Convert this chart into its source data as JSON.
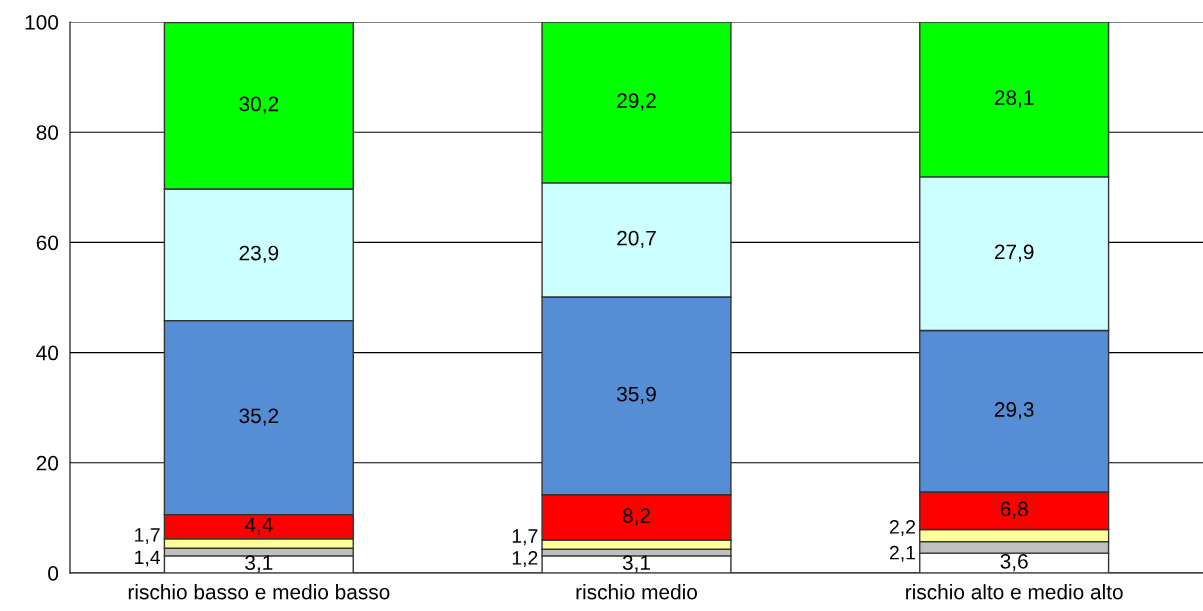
{
  "chart_data": {
    "type": "bar",
    "stacked": true,
    "categories": [
      "rischio basso e medio basso",
      "rischio medio",
      "rischio alto e medio alto"
    ],
    "ylim": [
      0,
      100
    ],
    "yticks": [
      0,
      20,
      40,
      60,
      80,
      100
    ],
    "grid": "y",
    "series": [
      {
        "color": "#ffffff",
        "values": [
          3.1,
          3.1,
          3.6
        ],
        "value_labels": [
          "3,1",
          "3,1",
          "3,6"
        ]
      },
      {
        "color": "#c0c0c0",
        "values": [
          1.4,
          1.2,
          2.1
        ],
        "value_labels": [
          "1,4",
          "1,2",
          "2,1"
        ]
      },
      {
        "color": "#ffff99",
        "values": [
          1.7,
          1.7,
          2.2
        ],
        "value_labels": [
          "1,7",
          "1,7",
          "2,2"
        ]
      },
      {
        "color": "#ff0000",
        "values": [
          4.4,
          8.2,
          6.8
        ],
        "value_labels": [
          "4,4",
          "8,2",
          "6,8"
        ]
      },
      {
        "color": "#558ed5",
        "values": [
          35.2,
          35.9,
          29.3
        ],
        "value_labels": [
          "35,2",
          "35,9",
          "29,3"
        ]
      },
      {
        "color": "#ccffff",
        "values": [
          23.9,
          20.7,
          27.9
        ],
        "value_labels": [
          "23,9",
          "20,7",
          "27,9"
        ]
      },
      {
        "color": "#00ff00",
        "values": [
          30.2,
          29.2,
          28.1
        ],
        "value_labels": [
          "30,2",
          "29,2",
          "28,1"
        ]
      }
    ]
  }
}
